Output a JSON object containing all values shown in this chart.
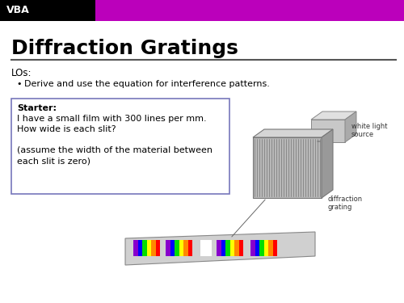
{
  "bg_color": "#ffffff",
  "header_bg": "#bb00bb",
  "header_black_bg": "#000000",
  "header_text": "VBA",
  "header_text_color": "#ffffff",
  "title": "Diffraction Gratings",
  "title_color": "#000000",
  "divider_color": "#555555",
  "lo_label": "LOs:",
  "bullet_text": "Derive and use the equation for interference patterns.",
  "starter_label": "Starter:",
  "starter_lines": [
    "I have a small film with 300 lines per mm.",
    "How wide is each slit?",
    "",
    "(assume the width of the material between",
    "each slit is zero)"
  ],
  "box_edge_color": "#7777bb",
  "wl_label": "white light\nsource",
  "diff_label": "diffraction\ngrating",
  "rainbow_colors": [
    "#ff0000",
    "#ff8800",
    "#ffff00",
    "#00dd00",
    "#0000ff",
    "#8800cc"
  ],
  "rainbow_colors2": [
    "#ff0000",
    "#ff6600",
    "#ffff00",
    "#00cc00",
    "#0033ff",
    "#8800cc"
  ]
}
